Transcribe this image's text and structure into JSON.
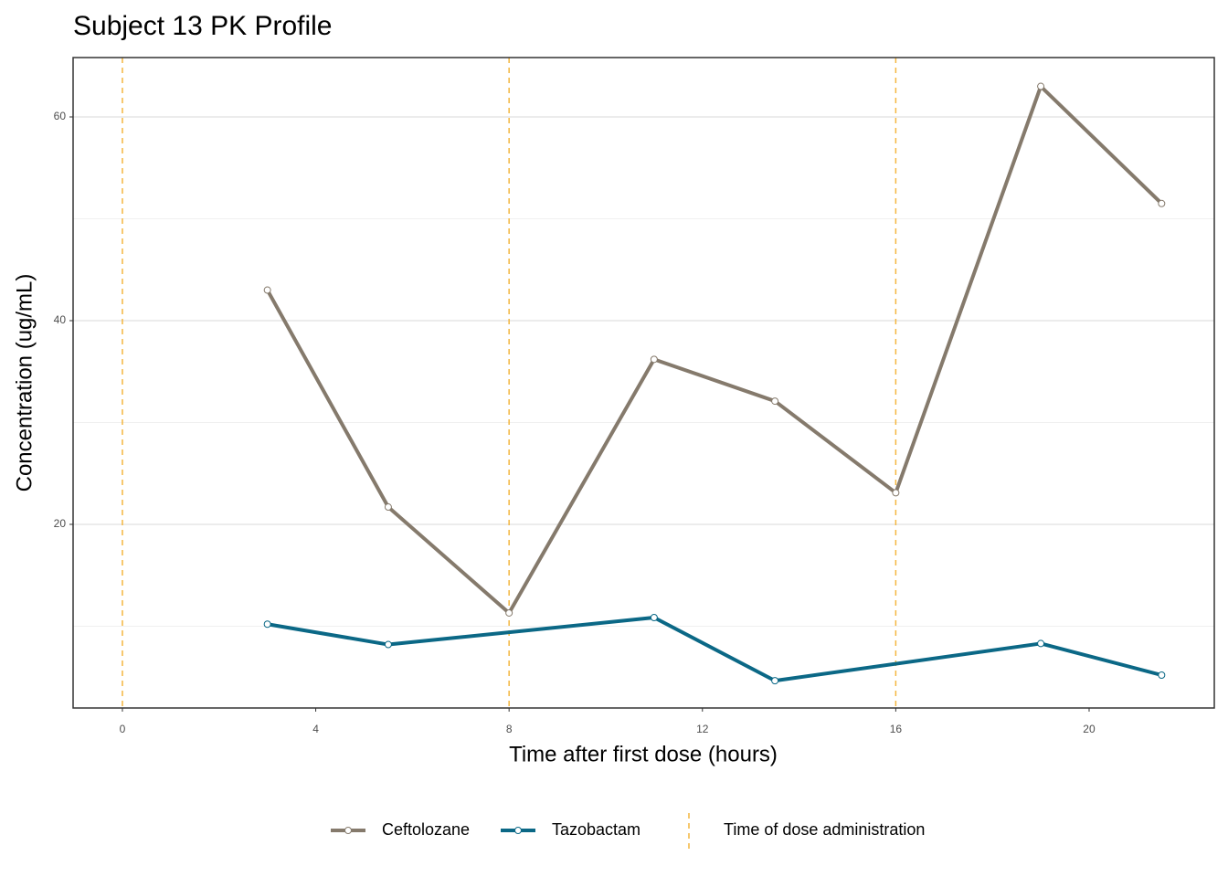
{
  "chart_data": {
    "type": "line",
    "title": "Subject 13 PK Profile",
    "x_label": "Time after first dose (hours)",
    "y_label": "Concentration (ug/mL)",
    "xlim": [
      -1.02,
      22.59
    ],
    "xticks": [
      0,
      4,
      8,
      12,
      16,
      20
    ],
    "ylim": [
      1.97,
      65.83
    ],
    "yticks": [
      20,
      40,
      60
    ],
    "y_minor_grid": [
      10,
      30,
      50
    ],
    "grid": true,
    "series": [
      {
        "name": "Ceftolozane",
        "color": "#857a6c",
        "x": [
          3,
          5.5,
          8,
          11,
          13.5,
          16,
          19,
          21.5
        ],
        "values": [
          43.0,
          21.7,
          11.3,
          36.2,
          32.1,
          23.1,
          63.0,
          51.5
        ]
      },
      {
        "name": "Tazobactam",
        "color": "#0b6886",
        "x": [
          3,
          5.5,
          11,
          13.5,
          19,
          21.5
        ],
        "values": [
          10.2,
          8.2,
          10.85,
          4.65,
          8.3,
          5.2
        ]
      }
    ],
    "dose_lines": {
      "name": "Time of dose administration",
      "color": "#f4b63f",
      "x": [
        0,
        8,
        16
      ]
    },
    "legend": "bottom"
  }
}
